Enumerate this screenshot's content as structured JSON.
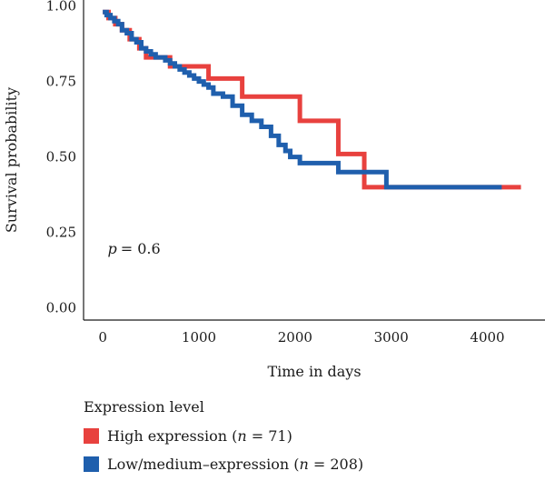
{
  "chart_data": {
    "type": "line",
    "step": true,
    "xlabel": "Time in days",
    "ylabel": "Survival probability",
    "xlim": [
      -200,
      4600
    ],
    "ylim": [
      -0.04,
      1.02
    ],
    "xticks": [
      0,
      1000,
      2000,
      3000,
      4000
    ],
    "xtick_labels": [
      "0",
      "1000",
      "2000",
      "3000",
      "4000"
    ],
    "yticks": [
      0,
      0.25,
      0.5,
      0.75,
      1.0
    ],
    "ytick_labels": [
      "0.00",
      "0.25",
      "0.50",
      "0.75",
      "1.00"
    ],
    "grid": false,
    "annotation": {
      "p_label": "p",
      "p_value": "= 0.6",
      "x": 50,
      "y": 0.18
    },
    "legend": {
      "title": "Expression level",
      "position": "bottom-left",
      "items": [
        {
          "label": "High expression (",
          "n_label": "n",
          "n_value": " = 71)",
          "color": "#e8413e"
        },
        {
          "label": "Low/medium–expression (",
          "n_label": "n",
          "n_value": " = 208)",
          "color": "#1f5fad"
        }
      ]
    },
    "series": [
      {
        "key": "high",
        "color": "#e8413e",
        "x": [
          0,
          60,
          130,
          200,
          280,
          380,
          450,
          540,
          700,
          1100,
          1450,
          2050,
          2450,
          2720,
          4350
        ],
        "y": [
          0.98,
          0.96,
          0.94,
          0.92,
          0.89,
          0.86,
          0.83,
          0.83,
          0.8,
          0.76,
          0.7,
          0.62,
          0.51,
          0.4,
          0.4
        ]
      },
      {
        "key": "low",
        "color": "#1f5fad",
        "x": [
          0,
          40,
          80,
          120,
          160,
          200,
          250,
          300,
          350,
          400,
          450,
          500,
          550,
          600,
          650,
          700,
          750,
          800,
          850,
          900,
          950,
          1000,
          1050,
          1100,
          1150,
          1250,
          1350,
          1450,
          1550,
          1650,
          1750,
          1830,
          1900,
          1950,
          2050,
          2250,
          2450,
          2950,
          4150
        ],
        "y": [
          0.98,
          0.97,
          0.96,
          0.95,
          0.94,
          0.92,
          0.91,
          0.89,
          0.88,
          0.86,
          0.85,
          0.84,
          0.83,
          0.83,
          0.82,
          0.81,
          0.8,
          0.79,
          0.78,
          0.77,
          0.76,
          0.75,
          0.74,
          0.73,
          0.71,
          0.7,
          0.67,
          0.64,
          0.62,
          0.6,
          0.57,
          0.54,
          0.52,
          0.5,
          0.48,
          0.48,
          0.45,
          0.4,
          0.4
        ]
      }
    ]
  }
}
